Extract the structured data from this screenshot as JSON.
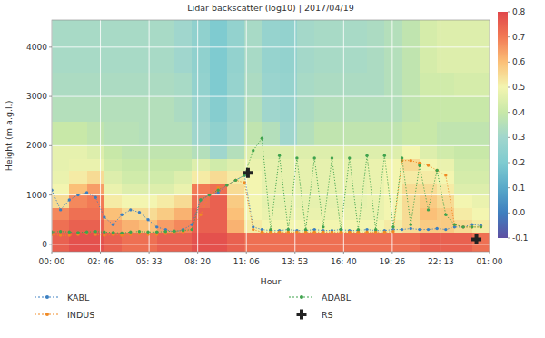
{
  "chart_data": {
    "type": "heatmap",
    "title": "Lidar backscatter (log10) | 2017/04/19",
    "x_label": "Hour",
    "y_label": "Height (m a.g.l.)",
    "xlim": [
      0,
      25
    ],
    "ylim": [
      -150,
      4550
    ],
    "xticks": [
      {
        "value": 0,
        "label": "00: 00"
      },
      {
        "value": 2.7778,
        "label": "02: 46"
      },
      {
        "value": 5.5556,
        "label": "05: 33"
      },
      {
        "value": 8.3333,
        "label": "08: 20"
      },
      {
        "value": 11.1111,
        "label": "11: 06"
      },
      {
        "value": 13.8889,
        "label": "13: 53"
      },
      {
        "value": 16.6667,
        "label": "16: 40"
      },
      {
        "value": 19.4444,
        "label": "19: 26"
      },
      {
        "value": 22.2222,
        "label": "22: 13"
      },
      {
        "value": 25,
        "label": "01: 00"
      }
    ],
    "yticks": [
      0,
      1000,
      2000,
      3000,
      4000
    ],
    "grid": true,
    "legend": "bottom",
    "color_range": [
      -0.1,
      0.8
    ],
    "color_ticks": [
      -0.1,
      {
        "value": 0,
        "label": "0.0"
      },
      0.1,
      0.2,
      0.3,
      0.4,
      0.5,
      0.6,
      0.7,
      0.8
    ],
    "x_edges": [
      0,
      1,
      2,
      3,
      4,
      5,
      6,
      7,
      8,
      9,
      10,
      11,
      12,
      13,
      14,
      15,
      16,
      17,
      18,
      19,
      20,
      21,
      22,
      23,
      24,
      25
    ],
    "y_edges": [
      -150,
      250,
      500,
      750,
      1000,
      1250,
      1500,
      1750,
      2000,
      2500,
      3000,
      3500,
      4000,
      4550
    ],
    "cells": [
      [
        0.75,
        0.78,
        0.78,
        0.75,
        0.72,
        0.72,
        0.75,
        0.75,
        0.78,
        0.78,
        0.75,
        0.72,
        0.72,
        0.72,
        0.72,
        0.72,
        0.72,
        0.72,
        0.72,
        0.72,
        0.72,
        0.75,
        0.75,
        0.75,
        0.72
      ],
      [
        0.72,
        0.75,
        0.75,
        0.65,
        0.62,
        0.6,
        0.65,
        0.68,
        0.75,
        0.75,
        0.62,
        0.52,
        0.5,
        0.5,
        0.5,
        0.5,
        0.5,
        0.5,
        0.5,
        0.52,
        0.55,
        0.58,
        0.58,
        0.55,
        0.52
      ],
      [
        0.68,
        0.72,
        0.72,
        0.6,
        0.55,
        0.55,
        0.58,
        0.62,
        0.75,
        0.75,
        0.6,
        0.5,
        0.48,
        0.48,
        0.48,
        0.48,
        0.48,
        0.48,
        0.48,
        0.5,
        0.55,
        0.6,
        0.58,
        0.52,
        0.5
      ],
      [
        0.55,
        0.68,
        0.7,
        0.52,
        0.5,
        0.5,
        0.52,
        0.55,
        0.72,
        0.75,
        0.58,
        0.5,
        0.47,
        0.47,
        0.47,
        0.47,
        0.47,
        0.47,
        0.48,
        0.5,
        0.55,
        0.58,
        0.55,
        0.5,
        0.48
      ],
      [
        0.5,
        0.6,
        0.65,
        0.48,
        0.45,
        0.45,
        0.45,
        0.48,
        0.7,
        0.72,
        0.55,
        0.5,
        0.47,
        0.47,
        0.47,
        0.47,
        0.47,
        0.47,
        0.48,
        0.5,
        0.55,
        0.55,
        0.52,
        0.45,
        0.45
      ],
      [
        0.48,
        0.52,
        0.55,
        0.45,
        0.42,
        0.42,
        0.42,
        0.45,
        0.52,
        0.55,
        0.52,
        0.5,
        0.47,
        0.47,
        0.47,
        0.47,
        0.47,
        0.47,
        0.48,
        0.5,
        0.52,
        0.52,
        0.5,
        0.43,
        0.43
      ],
      [
        0.47,
        0.48,
        0.48,
        0.42,
        0.4,
        0.4,
        0.4,
        0.4,
        0.45,
        0.42,
        0.45,
        0.48,
        0.47,
        0.47,
        0.47,
        0.47,
        0.47,
        0.47,
        0.48,
        0.5,
        0.55,
        0.5,
        0.48,
        0.42,
        0.42
      ],
      [
        0.47,
        0.47,
        0.45,
        0.4,
        0.38,
        0.38,
        0.38,
        0.38,
        0.35,
        0.3,
        0.35,
        0.45,
        0.45,
        0.45,
        0.45,
        0.45,
        0.45,
        0.45,
        0.45,
        0.45,
        0.5,
        0.45,
        0.42,
        0.4,
        0.4
      ],
      [
        0.4,
        0.4,
        0.38,
        0.36,
        0.36,
        0.35,
        0.35,
        0.35,
        0.3,
        0.25,
        0.3,
        0.38,
        0.35,
        0.3,
        0.35,
        0.38,
        0.38,
        0.38,
        0.38,
        0.38,
        0.4,
        0.4,
        0.38,
        0.38,
        0.38
      ],
      [
        0.35,
        0.35,
        0.35,
        0.35,
        0.35,
        0.35,
        0.35,
        0.33,
        0.28,
        0.22,
        0.28,
        0.35,
        0.3,
        0.28,
        0.33,
        0.35,
        0.35,
        0.35,
        0.35,
        0.35,
        0.38,
        0.4,
        0.4,
        0.4,
        0.4
      ],
      [
        0.33,
        0.33,
        0.33,
        0.33,
        0.33,
        0.33,
        0.33,
        0.32,
        0.26,
        0.2,
        0.27,
        0.33,
        0.28,
        0.27,
        0.32,
        0.33,
        0.33,
        0.33,
        0.33,
        0.35,
        0.38,
        0.42,
        0.42,
        0.43,
        0.43
      ],
      [
        0.32,
        0.32,
        0.32,
        0.32,
        0.32,
        0.32,
        0.32,
        0.3,
        0.25,
        0.2,
        0.26,
        0.32,
        0.27,
        0.26,
        0.31,
        0.32,
        0.32,
        0.32,
        0.33,
        0.35,
        0.38,
        0.43,
        0.45,
        0.45,
        0.45
      ],
      [
        0.32,
        0.32,
        0.32,
        0.32,
        0.32,
        0.32,
        0.32,
        0.3,
        0.25,
        0.2,
        0.26,
        0.32,
        0.27,
        0.26,
        0.31,
        0.32,
        0.32,
        0.32,
        0.33,
        0.35,
        0.38,
        0.43,
        0.45,
        0.45,
        0.45
      ]
    ],
    "series": [
      {
        "name": "KABL",
        "type": "line",
        "color": "#3a7fc1",
        "marker": "circle",
        "line_style": "dotted",
        "x": [
          0,
          0.5,
          1,
          1.5,
          2,
          2.5,
          3,
          3.5,
          4,
          4.5,
          5,
          5.5,
          6,
          6.5,
          7,
          7.5,
          8,
          8.5,
          9,
          9.5,
          10,
          10.5,
          11,
          11.5,
          12,
          12.5,
          13,
          13.5,
          14,
          14.5,
          15,
          15.5,
          16,
          16.5,
          17,
          17.5,
          18,
          18.5,
          19,
          19.5,
          20,
          20.5,
          21,
          21.5,
          22,
          22.5,
          23,
          23.5,
          24,
          24.5
        ],
        "values": [
          1100,
          700,
          900,
          1000,
          1050,
          950,
          550,
          400,
          600,
          700,
          650,
          500,
          350,
          300,
          250,
          300,
          400,
          900,
          1000,
          1050,
          1200,
          1300,
          1400,
          350,
          300,
          280,
          280,
          300,
          280,
          280,
          300,
          280,
          280,
          300,
          280,
          280,
          300,
          280,
          280,
          300,
          300,
          320,
          300,
          300,
          320,
          300,
          350,
          350,
          400,
          380
        ]
      },
      {
        "name": "INDUS",
        "type": "line",
        "color": "#f08a24",
        "marker": "circle",
        "line_style": "dotted",
        "x": [
          0,
          0.5,
          1,
          1.5,
          2,
          2.5,
          3,
          3.5,
          4,
          4.5,
          5,
          5.5,
          6,
          6.5,
          7,
          7.5,
          8,
          8.5,
          9,
          9.5,
          10,
          10.5,
          11,
          11.5,
          12,
          12.5,
          13,
          13.5,
          14,
          14.5,
          15,
          15.5,
          16,
          16.5,
          17,
          17.5,
          18,
          18.5,
          19,
          19.5,
          20,
          20.5,
          21,
          21.5,
          22,
          22.5,
          23,
          23.5,
          24,
          24.5
        ],
        "values": [
          200,
          180,
          180,
          200,
          220,
          200,
          180,
          200,
          180,
          200,
          220,
          200,
          200,
          220,
          250,
          250,
          300,
          600,
          1000,
          1150,
          1200,
          1300,
          1250,
          300,
          250,
          250,
          250,
          250,
          250,
          250,
          250,
          250,
          250,
          250,
          250,
          250,
          250,
          250,
          250,
          260,
          1700,
          1700,
          1650,
          1600,
          1500,
          1400,
          400,
          350,
          350,
          350
        ]
      },
      {
        "name": "ADABL",
        "type": "line",
        "color": "#3fa34d",
        "marker": "circle",
        "line_style": "dotted",
        "x": [
          0,
          0.5,
          1,
          1.5,
          2,
          2.5,
          3,
          3.5,
          4,
          4.5,
          5,
          5.5,
          6,
          6.5,
          7,
          7.5,
          8,
          8.5,
          9,
          9.5,
          10,
          10.5,
          11,
          11.5,
          12,
          12.5,
          13,
          13.5,
          14,
          14.5,
          15,
          15.5,
          16,
          16.5,
          17,
          17.5,
          18,
          18.5,
          19,
          19.5,
          20,
          20.5,
          21,
          21.5,
          22,
          22.5,
          23,
          23.5,
          24,
          24.5
        ],
        "values": [
          250,
          260,
          250,
          240,
          250,
          260,
          250,
          240,
          230,
          250,
          260,
          250,
          250,
          260,
          270,
          280,
          300,
          900,
          1000,
          1100,
          1200,
          1300,
          1400,
          1900,
          2150,
          300,
          1800,
          300,
          1750,
          300,
          1750,
          350,
          1750,
          300,
          1750,
          300,
          1800,
          300,
          1800,
          350,
          1750,
          400,
          1600,
          700,
          1500,
          600,
          400,
          350,
          350,
          350
        ]
      },
      {
        "name": "RS",
        "type": "scatter",
        "color": "#222222",
        "marker": "plus",
        "x": [
          11.2,
          24.25
        ],
        "values": [
          1450,
          100
        ]
      }
    ]
  }
}
